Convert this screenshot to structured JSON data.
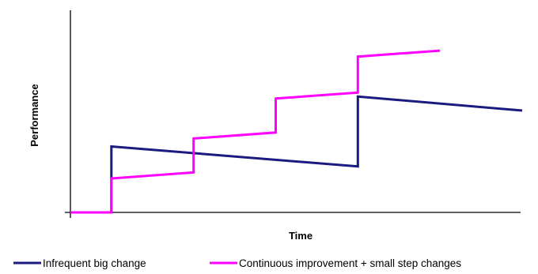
{
  "chart_data": {
    "type": "line",
    "title": "",
    "xlabel": "Time",
    "ylabel": "Performance",
    "grid": false,
    "legend_position": "bottom",
    "xlim": [
      0,
      12
    ],
    "ylim": [
      0,
      10
    ],
    "series": [
      {
        "name": "Infrequent big change",
        "color": "#1a1a80",
        "points": [
          [
            1,
            0
          ],
          [
            2,
            0
          ],
          [
            2,
            3.3
          ],
          [
            8,
            2.3
          ],
          [
            8,
            5.8
          ],
          [
            12,
            5.1
          ]
        ]
      },
      {
        "name": "Continuous improvement + small step changes",
        "color": "#ff00ff",
        "points": [
          [
            1,
            0
          ],
          [
            2,
            0
          ],
          [
            2,
            1.7
          ],
          [
            4,
            2.0
          ],
          [
            4,
            3.7
          ],
          [
            6,
            4.0
          ],
          [
            6,
            5.7
          ],
          [
            8,
            6.0
          ],
          [
            8,
            7.8
          ],
          [
            10,
            8.1
          ]
        ]
      }
    ]
  }
}
